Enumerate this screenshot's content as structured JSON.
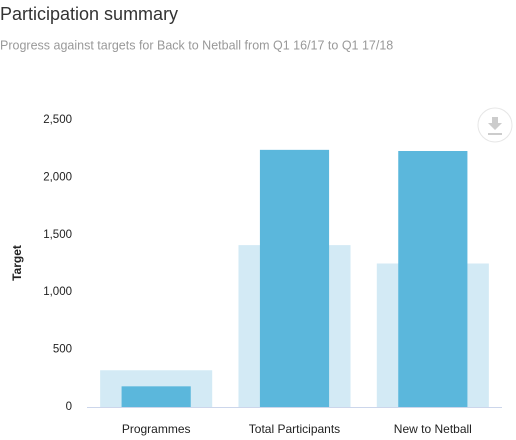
{
  "chart_data": {
    "type": "bar",
    "title": "Participation summary",
    "subtitle": "Progress against targets for Back to Netball from Q1 16/17 to Q1 17/18",
    "y_axis_label": "Target",
    "categories": [
      "Programmes",
      "Total Participants",
      "New to Netball"
    ],
    "series": [
      {
        "color": "#d3eaf5",
        "values": [
          320,
          1410,
          1250
        ]
      },
      {
        "color": "#5bb7dc",
        "values": [
          180,
          2240,
          2230
        ]
      }
    ],
    "ylim": [
      0,
      2500
    ],
    "yticks": [
      0,
      500,
      {
        "value": 1000,
        "label": "1,000"
      },
      {
        "value": 1500,
        "label": "1,500"
      },
      {
        "value": 2000,
        "label": "2,000"
      },
      {
        "value": 2500,
        "label": "2,500"
      }
    ],
    "grid": false
  }
}
